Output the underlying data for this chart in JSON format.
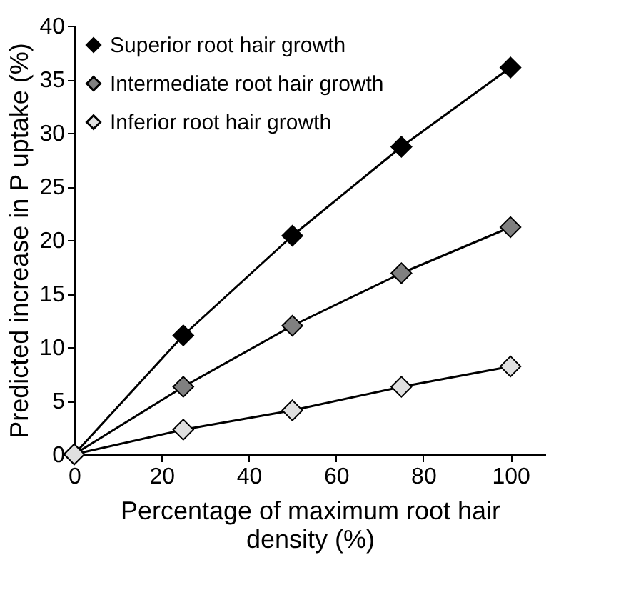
{
  "chart_data": {
    "type": "line",
    "xlabel": "Percentage of maximum root hair density (%)",
    "ylabel": "Predicted increase in P uptake (%)",
    "x": [
      0,
      25,
      50,
      75,
      100
    ],
    "series": [
      {
        "name": "Superior root hair growth",
        "color": "#000000",
        "values": [
          0,
          11.1,
          20.4,
          28.7,
          36.1
        ]
      },
      {
        "name": "Intermediate root hair growth",
        "color": "#808080",
        "values": [
          0,
          6.3,
          12.0,
          16.9,
          21.2
        ]
      },
      {
        "name": "Inferior root hair growth",
        "color": "#e0e0e0",
        "values": [
          0,
          2.3,
          4.1,
          6.3,
          8.2
        ]
      }
    ],
    "xlim": [
      0,
      108
    ],
    "xticks": [
      0,
      20,
      40,
      60,
      80,
      100
    ],
    "ylim": [
      0,
      40
    ],
    "yticks": [
      0,
      5,
      10,
      15,
      20,
      25,
      30,
      35,
      40
    ],
    "grid": false,
    "legend": "top left",
    "marker": "diamond",
    "line_style": "solid"
  }
}
